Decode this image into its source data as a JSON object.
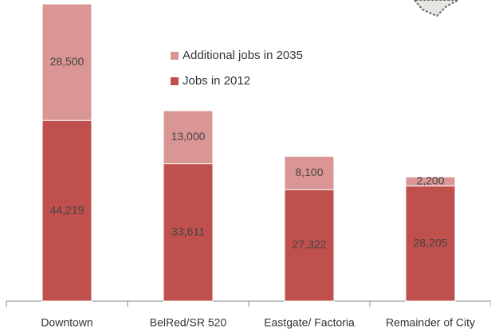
{
  "chart_data": {
    "type": "stacked_bar",
    "categories": [
      "Downtown",
      "BelRed/SR 520",
      "Eastgate/ Factoria",
      "Remainder of City"
    ],
    "series": [
      {
        "name": "Jobs in 2012",
        "color": "#c0504d",
        "values": [
          44219,
          33611,
          27322,
          28205
        ],
        "value_labels": [
          "44,219",
          "33,611",
          "27,322",
          "28,205"
        ]
      },
      {
        "name": "Additional jobs in 2035",
        "color": "#d99694",
        "values": [
          28500,
          13000,
          8100,
          2200
        ],
        "value_labels": [
          "28,500",
          "13,000",
          "8,100",
          "2,200"
        ]
      }
    ]
  }
}
